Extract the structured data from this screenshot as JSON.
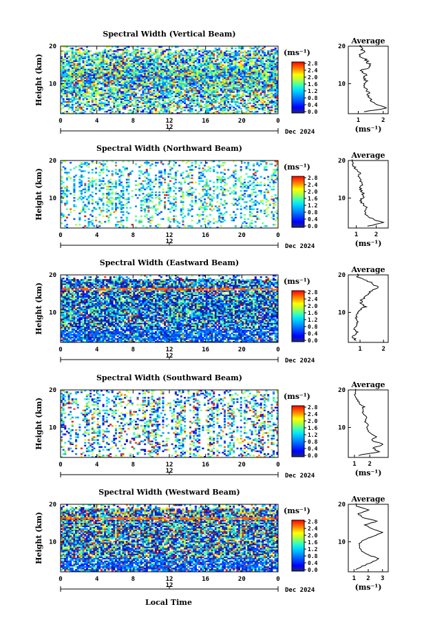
{
  "figure": {
    "xlabel": "Local Time",
    "date_label": "Dec 2024",
    "date_tick": "12",
    "avg_title": "Average",
    "unit_label": "(ms⁻¹)"
  },
  "chart_data": [
    {
      "type": "heatmap",
      "title": "Spectral Width (Vertical Beam)",
      "ylabel": "Height (km)",
      "xlabel": "",
      "xlim": [
        0,
        24
      ],
      "ylim": [
        2,
        20
      ],
      "xticks": [
        "0",
        "4",
        "8",
        "12",
        "16",
        "20",
        "0"
      ],
      "yticks": [
        "10",
        "20"
      ],
      "colorbar": {
        "label": "(ms⁻¹)",
        "range": [
          0.0,
          2.8
        ],
        "ticks": [
          "0.0",
          "0.4",
          "0.8",
          "1.2",
          "1.6",
          "2.0",
          "2.4",
          "2.8"
        ]
      },
      "average_profile": {
        "title": "Average",
        "xlabel": "(ms⁻¹)",
        "xticks": [
          "1",
          "2"
        ],
        "xlim": [
          0.6,
          2.2
        ],
        "height": [
          3,
          4,
          5,
          6,
          7,
          8,
          9,
          10,
          11,
          12,
          13,
          14,
          15,
          16,
          17,
          18,
          19,
          20
        ],
        "values": [
          1.3,
          2.1,
          1.7,
          1.5,
          1.4,
          1.4,
          1.3,
          1.2,
          1.35,
          1.2,
          1.3,
          1.1,
          1.5,
          1.4,
          1.3,
          1.05,
          1.2,
          1.1
        ]
      }
    },
    {
      "type": "heatmap",
      "title": "Spectral Width (Northward Beam)",
      "ylabel": "Height (km)",
      "xlabel": "",
      "xlim": [
        0,
        24
      ],
      "ylim": [
        2,
        20
      ],
      "xticks": [
        "0",
        "4",
        "8",
        "12",
        "16",
        "20",
        "0"
      ],
      "yticks": [
        "10",
        "20"
      ],
      "colorbar": {
        "label": "(ms⁻¹)",
        "range": [
          0.0,
          2.8
        ],
        "ticks": [
          "0.0",
          "0.4",
          "0.8",
          "1.2",
          "1.6",
          "2.0",
          "2.4",
          "2.8"
        ]
      },
      "average_profile": {
        "title": "Average",
        "xlabel": "(ms⁻¹)",
        "xticks": [
          "1",
          "2"
        ],
        "xlim": [
          0.6,
          2.6
        ],
        "height": [
          3,
          4,
          5,
          6,
          7,
          8,
          9,
          10,
          11,
          12,
          13,
          14,
          15,
          16,
          17,
          18,
          19,
          20
        ],
        "values": [
          1.6,
          2.3,
          1.8,
          1.5,
          1.4,
          1.5,
          1.3,
          1.2,
          1.4,
          1.3,
          1.2,
          1.3,
          1.2,
          1.1,
          1.2,
          1.0,
          0.9,
          0.8
        ]
      }
    },
    {
      "type": "heatmap",
      "title": "Spectral Width (Eastward Beam)",
      "ylabel": "Height (km)",
      "xlabel": "",
      "xlim": [
        0,
        24
      ],
      "ylim": [
        2,
        20
      ],
      "xticks": [
        "0",
        "4",
        "8",
        "12",
        "16",
        "20",
        "0"
      ],
      "yticks": [
        "10",
        "20"
      ],
      "colorbar": {
        "label": "(ms⁻¹)",
        "range": [
          0.0,
          2.8
        ],
        "ticks": [
          "0.0",
          "0.4",
          "0.8",
          "1.2",
          "1.6",
          "2.0",
          "2.4",
          "2.8"
        ]
      },
      "average_profile": {
        "title": "Average",
        "xlabel": "",
        "xticks": [
          "1",
          "2"
        ],
        "xlim": [
          0.5,
          2.2
        ],
        "height": [
          3,
          4,
          5,
          6,
          7,
          8,
          9,
          10,
          11,
          12,
          13,
          14,
          15,
          16,
          17,
          18,
          19,
          20
        ],
        "values": [
          0.8,
          0.7,
          0.9,
          0.75,
          0.8,
          0.9,
          0.85,
          0.9,
          1.0,
          1.2,
          1.0,
          1.1,
          1.3,
          1.4,
          1.8,
          1.6,
          1.3,
          0.9
        ]
      }
    },
    {
      "type": "heatmap",
      "title": "Spectral Width (Southward Beam)",
      "ylabel": "Height (km)",
      "xlabel": "",
      "xlim": [
        0,
        24
      ],
      "ylim": [
        2,
        20
      ],
      "xticks": [
        "0",
        "4",
        "8",
        "12",
        "16",
        "20",
        "0"
      ],
      "yticks": [
        "10",
        "20"
      ],
      "colorbar": {
        "label": "(ms⁻¹)",
        "range": [
          0.0,
          2.8
        ],
        "ticks": [
          "0.0",
          "0.4",
          "0.8",
          "1.2",
          "1.6",
          "2.0",
          "2.4",
          "2.8"
        ]
      },
      "average_profile": {
        "title": "Average",
        "xlabel": "(ms⁻¹)",
        "xticks": [
          "1",
          "2"
        ],
        "xlim": [
          0.6,
          3.2
        ],
        "height": [
          3,
          4,
          5,
          6,
          7,
          8,
          9,
          10,
          11,
          12,
          13,
          14,
          15,
          16,
          17,
          18,
          19,
          20
        ],
        "values": [
          1.2,
          2.6,
          2.2,
          2.9,
          2.1,
          2.4,
          2.0,
          1.8,
          1.9,
          1.7,
          1.8,
          1.6,
          1.5,
          1.6,
          1.3,
          1.2,
          1.0,
          1.1
        ]
      }
    },
    {
      "type": "heatmap",
      "title": "Spectral Width (Westward Beam)",
      "ylabel": "Height (km)",
      "xlabel": "Local Time",
      "xlim": [
        0,
        24
      ],
      "ylim": [
        2,
        20
      ],
      "xticks": [
        "0",
        "4",
        "8",
        "12",
        "16",
        "20",
        "0"
      ],
      "yticks": [
        "10",
        "20"
      ],
      "colorbar": {
        "label": "(ms⁻¹)",
        "range": [
          0.0,
          2.8
        ],
        "ticks": [
          "0.0",
          "0.4",
          "0.8",
          "1.2",
          "1.6",
          "2.0",
          "2.4",
          "2.8"
        ]
      },
      "average_profile": {
        "title": "Average",
        "xlabel": "(ms⁻¹)",
        "xticks": [
          "1",
          "2",
          "3"
        ],
        "xlim": [
          0.6,
          3.4
        ],
        "height": [
          3,
          4,
          5,
          6,
          7,
          8,
          9,
          10,
          11,
          12,
          13,
          14,
          15,
          16,
          17,
          18,
          19,
          20
        ],
        "values": [
          1.1,
          1.6,
          2.2,
          2.8,
          2.0,
          1.6,
          1.4,
          1.3,
          1.7,
          2.4,
          3.0,
          2.3,
          1.8,
          2.6,
          1.6,
          1.3,
          2.0,
          1.2
        ]
      }
    }
  ]
}
